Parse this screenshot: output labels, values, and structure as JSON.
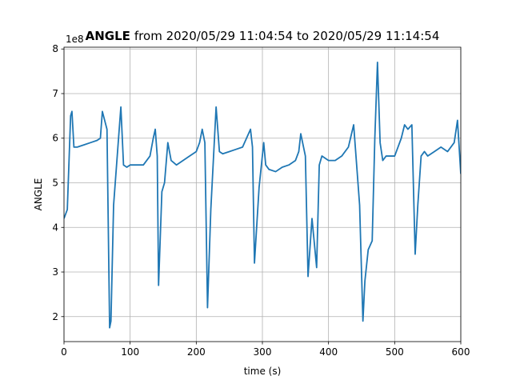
{
  "chart_data": {
    "type": "line",
    "title_bold": "ANGLE",
    "title": "from 2020/05/29 11:04:54 to 2020/05/29 11:14:54",
    "x_label": "time (s)",
    "y_label": "ANGLE",
    "y_offset_label": "1e8",
    "grid": true,
    "xlim": [
      0,
      600
    ],
    "xticks": [
      0,
      100,
      200,
      300,
      400,
      500,
      600
    ],
    "ylim": [
      1.44,
      8.04
    ],
    "yticks": [
      2,
      3,
      4,
      5,
      6,
      7,
      8
    ],
    "x": [
      0,
      5,
      10,
      12,
      15,
      20,
      30,
      40,
      50,
      55,
      58,
      65,
      69,
      71,
      75,
      80,
      86,
      90,
      95,
      100,
      110,
      120,
      130,
      135,
      138,
      141,
      143,
      148,
      152,
      157,
      162,
      170,
      180,
      190,
      200,
      205,
      209,
      213,
      217,
      222,
      230,
      235,
      240,
      250,
      260,
      270,
      282,
      285,
      288,
      295,
      302,
      305,
      310,
      320,
      330,
      340,
      350,
      355,
      358,
      365,
      369,
      375,
      382,
      386,
      390,
      400,
      410,
      420,
      430,
      438,
      441,
      447,
      452,
      455,
      460,
      466,
      470,
      474,
      478,
      482,
      487,
      492,
      500,
      505,
      510,
      515,
      520,
      526,
      531,
      535,
      540,
      545,
      550,
      560,
      570,
      580,
      590,
      595,
      600
    ],
    "series": [
      {
        "name": "ANGLE",
        "color": "#1f77b4",
        "values": [
          4.2,
          4.4,
          6.5,
          6.6,
          5.8,
          5.8,
          5.85,
          5.9,
          5.95,
          6.0,
          6.6,
          6.2,
          1.75,
          1.9,
          4.5,
          5.5,
          6.7,
          5.4,
          5.35,
          5.4,
          5.4,
          5.4,
          5.6,
          6.0,
          6.2,
          5.6,
          2.7,
          4.8,
          5.0,
          5.9,
          5.5,
          5.4,
          5.5,
          5.6,
          5.7,
          5.9,
          6.2,
          5.9,
          2.2,
          4.4,
          6.7,
          5.7,
          5.65,
          5.7,
          5.75,
          5.8,
          6.2,
          5.8,
          3.2,
          4.9,
          5.9,
          5.4,
          5.3,
          5.25,
          5.35,
          5.4,
          5.5,
          5.7,
          6.1,
          5.6,
          2.9,
          4.2,
          3.1,
          5.4,
          5.6,
          5.5,
          5.5,
          5.6,
          5.8,
          6.3,
          5.7,
          4.5,
          1.9,
          2.8,
          3.5,
          3.7,
          6.0,
          7.7,
          5.9,
          5.5,
          5.6,
          5.6,
          5.6,
          5.8,
          6.0,
          6.3,
          6.2,
          6.3,
          3.4,
          4.5,
          5.6,
          5.7,
          5.6,
          5.7,
          5.8,
          5.7,
          5.9,
          6.4,
          5.2
        ]
      }
    ]
  }
}
